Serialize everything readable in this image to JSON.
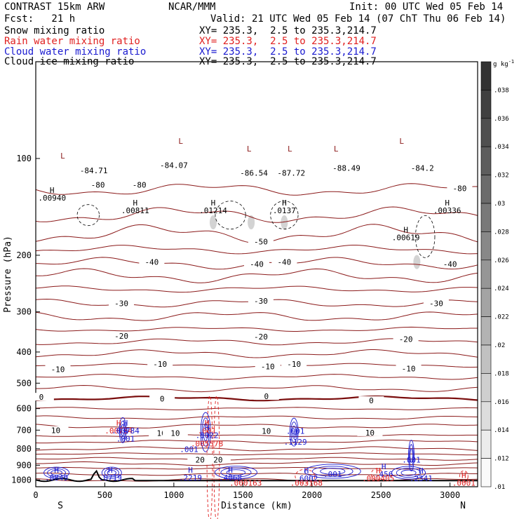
{
  "header": {
    "model": "CONTRAST 15km ARW",
    "institution": "NCAR/MMM",
    "init": "Init: 00 UTC Wed 05 Feb 14",
    "fcst": "Fcst:   21 h",
    "valid": "Valid: 21 UTC Wed 05 Feb 14 (07 ChT Thu 06 Feb 14)"
  },
  "legend": [
    {
      "label": "Snow mixing ratio",
      "xy": "XY= 235.3,  2.5 to 235.3,214.7",
      "color": "#000000"
    },
    {
      "label": "Rain water mixing ratio",
      "xy": "XY= 235.3,  2.5 to 235.3,214.7",
      "color": "#e02020"
    },
    {
      "label": "Cloud water mixing ratio",
      "xy": "XY= 235.3,  2.5 to 235.3,214.7",
      "color": "#1a1ad0"
    },
    {
      "label": "Cloud ice mixing ratio",
      "xy": "XY= 235.3,  2.5 to 235.3,214.7",
      "color": "#000000"
    }
  ],
  "colors": {
    "temperature": "#8b1a1a",
    "zero_line": "#7a0d0d",
    "cloud_water": "#1a1ad0",
    "rain_water": "#e02020",
    "snow": "#000000",
    "cloud_ice": "#000000",
    "terrain": "#000000"
  },
  "chart_data": {
    "type": "contour",
    "xlabel": "Distance (km)",
    "ylabel": "Pressure (hPa)",
    "xlim": [
      0,
      3200
    ],
    "ylim": [
      1050,
      50
    ],
    "y_scale": "log",
    "x_ticks": [
      0,
      500,
      1000,
      1500,
      2000,
      2500,
      3000
    ],
    "y_ticks": [
      100,
      200,
      300,
      400,
      500,
      600,
      700,
      800,
      900,
      1000
    ],
    "x_end_labels": {
      "left": "S",
      "right": "N"
    },
    "colorbar": {
      "unit": "g kg",
      "unit_exp": "-1",
      "ticks": [
        ".038",
        ".036",
        ".034",
        ".032",
        ".03",
        ".028",
        ".026",
        ".024",
        ".022",
        ".02",
        ".018",
        ".016",
        ".014",
        ".012",
        ".01"
      ]
    },
    "isotherm_labels": [
      {
        "x": 420,
        "p": 110,
        "text": "-84.71"
      },
      {
        "x": 1000,
        "p": 106,
        "text": "-84.07"
      },
      {
        "x": 1580,
        "p": 112,
        "text": "-86.54"
      },
      {
        "x": 1850,
        "p": 112,
        "text": "-87.72"
      },
      {
        "x": 2250,
        "p": 108,
        "text": "-88.49"
      },
      {
        "x": 2800,
        "p": 108,
        "text": "-84.2"
      },
      {
        "x": 450,
        "p": 122,
        "text": "-80"
      },
      {
        "x": 750,
        "p": 122,
        "text": "-80"
      },
      {
        "x": 3070,
        "p": 125,
        "text": "-80"
      },
      {
        "x": 1630,
        "p": 183,
        "text": "-50"
      },
      {
        "x": 840,
        "p": 212,
        "text": "-40"
      },
      {
        "x": 1600,
        "p": 215,
        "text": "-40"
      },
      {
        "x": 1800,
        "p": 212,
        "text": "-40"
      },
      {
        "x": 3000,
        "p": 215,
        "text": "-40"
      },
      {
        "x": 620,
        "p": 285,
        "text": "-30"
      },
      {
        "x": 1630,
        "p": 280,
        "text": "-30"
      },
      {
        "x": 2900,
        "p": 285,
        "text": "-30"
      },
      {
        "x": 620,
        "p": 360,
        "text": "-20"
      },
      {
        "x": 1630,
        "p": 362,
        "text": "-20"
      },
      {
        "x": 2680,
        "p": 368,
        "text": "-20"
      },
      {
        "x": 160,
        "p": 457,
        "text": "-10"
      },
      {
        "x": 900,
        "p": 440,
        "text": "-10"
      },
      {
        "x": 1680,
        "p": 448,
        "text": "-10"
      },
      {
        "x": 1870,
        "p": 440,
        "text": "-10"
      },
      {
        "x": 2700,
        "p": 455,
        "text": "-10"
      },
      {
        "x": 40,
        "p": 558,
        "text": "0"
      },
      {
        "x": 915,
        "p": 565,
        "text": "0"
      },
      {
        "x": 1670,
        "p": 555,
        "text": "0"
      },
      {
        "x": 2430,
        "p": 572,
        "text": "0"
      },
      {
        "x": 145,
        "p": 708,
        "text": "10"
      },
      {
        "x": 910,
        "p": 722,
        "text": "10"
      },
      {
        "x": 1010,
        "p": 722,
        "text": "10"
      },
      {
        "x": 1670,
        "p": 712,
        "text": "10"
      },
      {
        "x": 2420,
        "p": 720,
        "text": "10"
      },
      {
        "x": 1190,
        "p": 875,
        "text": "20"
      },
      {
        "x": 1320,
        "p": 875,
        "text": "20"
      }
    ],
    "hi_lo_marks": [
      {
        "x": 118,
        "p": 128,
        "text": "H",
        "value": ".00940",
        "color": "#000000"
      },
      {
        "x": 720,
        "p": 140,
        "text": "H",
        "value": ".00811",
        "color": "#000000"
      },
      {
        "x": 1285,
        "p": 140,
        "text": "H",
        "value": ".01214",
        "color": "#000000"
      },
      {
        "x": 1800,
        "p": 140,
        "text": "H",
        "value": ".0137",
        "color": "#000000"
      },
      {
        "x": 2980,
        "p": 140,
        "text": "H",
        "value": ".00336",
        "color": "#000000"
      },
      {
        "x": 2680,
        "p": 170,
        "text": "H",
        "value": ".00619",
        "color": "#000000"
      },
      {
        "x": 195,
        "p": 100,
        "text": "L",
        "value": "",
        "color": "#8b1a1a"
      },
      {
        "x": 1050,
        "p": 90,
        "text": "L",
        "value": "",
        "color": "#8b1a1a"
      },
      {
        "x": 1545,
        "p": 95,
        "text": "L",
        "value": "",
        "color": "#8b1a1a"
      },
      {
        "x": 1840,
        "p": 95,
        "text": "L",
        "value": "",
        "color": "#8b1a1a"
      },
      {
        "x": 2175,
        "p": 95,
        "text": "L",
        "value": "",
        "color": "#8b1a1a"
      },
      {
        "x": 2650,
        "p": 90,
        "text": "L",
        "value": "",
        "color": "#8b1a1a"
      },
      {
        "x": 600,
        "p": 678,
        "text": "H",
        "value": ".00784",
        "color": "#e02020"
      },
      {
        "x": 650,
        "p": 678,
        "text": "H",
        "value": ".00784",
        "color": "#1a1ad0"
      },
      {
        "x": 650,
        "p": 718,
        "text": "H",
        "value": ".001",
        "color": "#1a1ad0"
      },
      {
        "x": 1240,
        "p": 678,
        "text": "H",
        "value": ".001",
        "color": "#e02020"
      },
      {
        "x": 1240,
        "p": 700,
        "text": "H",
        "value": ".8022",
        "color": "#1a1ad0"
      },
      {
        "x": 1240,
        "p": 745,
        "text": "",
        "value": ".005578",
        "color": "#e02020"
      },
      {
        "x": 1110,
        "p": 775,
        "text": "",
        "value": ".001",
        "color": "#1a1ad0"
      },
      {
        "x": 1880,
        "p": 680,
        "text": "",
        "value": ".001",
        "color": "#1a1ad0"
      },
      {
        "x": 1880,
        "p": 735,
        "text": "H",
        "value": ".1129",
        "color": "#1a1ad0"
      },
      {
        "x": 2720,
        "p": 835,
        "text": "",
        "value": ".001",
        "color": "#1a1ad0"
      },
      {
        "x": 150,
        "p": 950,
        "text": "H",
        "value": ".0849",
        "color": "#1a1ad0"
      },
      {
        "x": 540,
        "p": 950,
        "text": "H",
        "value": ".0719",
        "color": "#1a1ad0"
      },
      {
        "x": 1120,
        "p": 950,
        "text": "H",
        "value": ".2219",
        "color": "#1a1ad0"
      },
      {
        "x": 1410,
        "p": 950,
        "text": "H",
        "value": ".4068",
        "color": "#1a1ad0"
      },
      {
        "x": 1520,
        "p": 985,
        "text": "",
        "value": ".000163",
        "color": "#e02020"
      },
      {
        "x": 1960,
        "p": 955,
        "text": "H",
        "value": ".6002",
        "color": "#1a1ad0"
      },
      {
        "x": 1960,
        "p": 985,
        "text": "",
        "value": ".003168",
        "color": "#e02020"
      },
      {
        "x": 2150,
        "p": 925,
        "text": "",
        "value": ".001",
        "color": "#1a1ad0"
      },
      {
        "x": 2520,
        "p": 925,
        "text": "H",
        "value": ".456",
        "color": "#1a1ad0"
      },
      {
        "x": 2480,
        "p": 955,
        "text": "H",
        "value": ".000405",
        "color": "#e02020"
      },
      {
        "x": 2790,
        "p": 955,
        "text": "H",
        "value": ".2341",
        "color": "#1a1ad0"
      },
      {
        "x": 3100,
        "p": 985,
        "text": "H",
        "value": ".0001",
        "color": "#e02020"
      }
    ]
  }
}
